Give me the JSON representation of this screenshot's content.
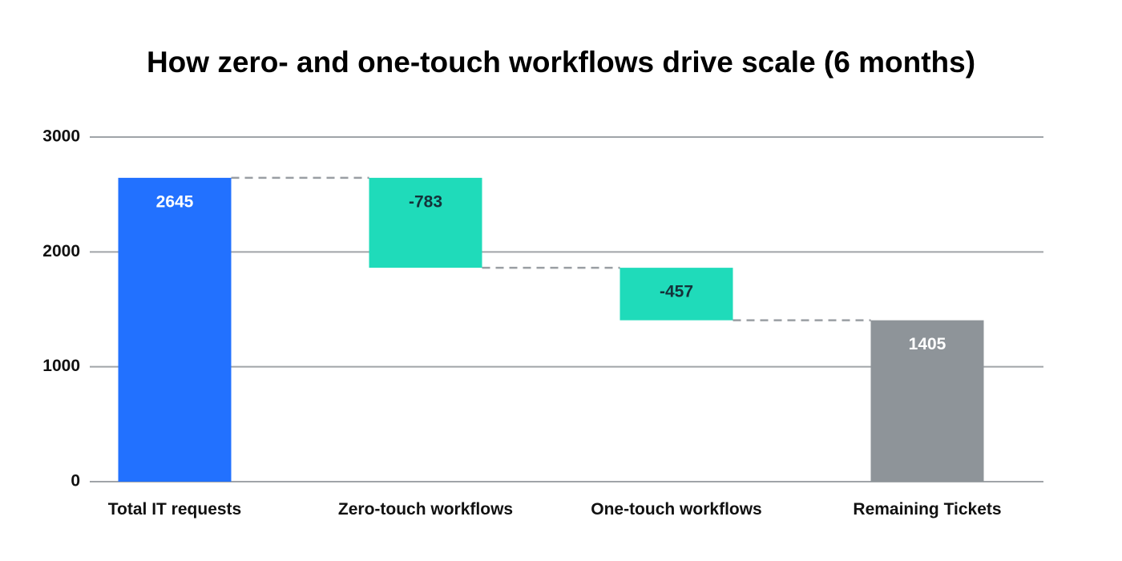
{
  "chart_data": {
    "type": "waterfall",
    "title": "How zero- and one-touch workflows drive scale (6 months)",
    "categories": [
      "Total IT requests",
      "Zero-touch workflows",
      "One-touch workflows",
      "Remaining Tickets"
    ],
    "values": [
      2645,
      -783,
      -457,
      1405
    ],
    "measures": [
      "absolute",
      "relative",
      "relative",
      "total"
    ],
    "colors": [
      "#2271ff",
      "#1fdbba",
      "#1fdbba",
      "#8e9499"
    ],
    "ylim": [
      0,
      3000
    ],
    "yticks": [
      0,
      1000,
      2000,
      3000
    ],
    "grid": true
  }
}
